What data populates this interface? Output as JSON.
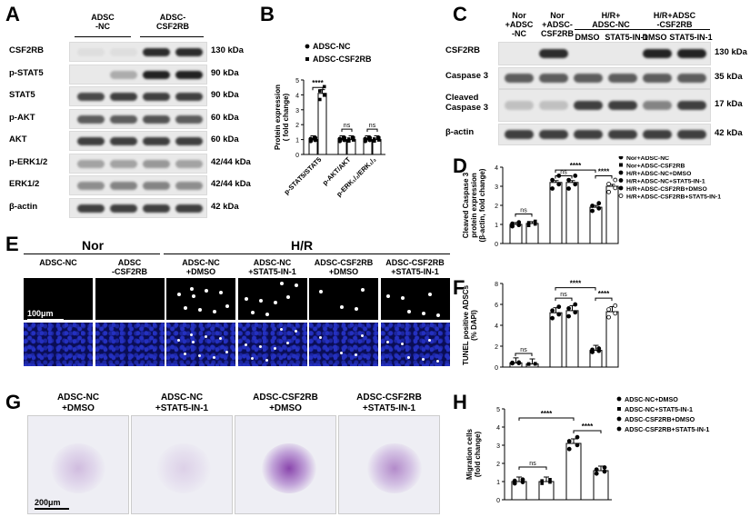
{
  "panels": {
    "A": {
      "letter": "A",
      "group_headers": [
        "ADSC\n-NC",
        "ADSC-\nCSF2RB"
      ],
      "rows": [
        {
          "label": "CSF2RB",
          "kda": "130 kDa"
        },
        {
          "label": "p-STAT5",
          "kda": "90 kDa"
        },
        {
          "label": "STAT5",
          "kda": "90 kDa"
        },
        {
          "label": "p-AKT",
          "kda": "60 kDa"
        },
        {
          "label": "AKT",
          "kda": "60 kDa"
        },
        {
          "label": "p-ERK1/2",
          "kda": "42/44 kDa"
        },
        {
          "label": "ERK1/2",
          "kda": "42/44 kDa"
        },
        {
          "label": "β-actin",
          "kda": "42 kDa"
        }
      ]
    },
    "B": {
      "letter": "B"
    },
    "C": {
      "letter": "C",
      "col_headers": [
        "Nor\n+ADSC\n-NC",
        "Nor\n+ADSC-\nCSF2RB"
      ],
      "group_headers": [
        "H/R+\nADSC-NC",
        "H/R+ADSC\n-CSF2RB"
      ],
      "sub_headers": [
        "DMSO",
        "STAT5-IN-1",
        "DMSO",
        "STAT5-IN-1"
      ],
      "rows": [
        {
          "label": "CSF2RB",
          "kda": "130 kDa"
        },
        {
          "label": "Caspase 3",
          "kda": "35 kDa"
        },
        {
          "label": "Cleaved\nCaspase 3",
          "kda": "17 kDa"
        },
        {
          "label": "β-actin",
          "kda": "42 kDa"
        }
      ]
    },
    "D": {
      "letter": "D"
    },
    "E": {
      "letter": "E",
      "group_headers": [
        "Nor",
        "H/R"
      ],
      "col_headers": [
        "ADSC-NC",
        "ADSC\n-CSF2RB",
        "ADSC-NC\n+DMSO",
        "ADSC-NC\n+STAT5-IN-1",
        "ADSC-CSF2RB\n+DMSO",
        "ADSC-CSF2RB\n+STAT5-IN-1"
      ],
      "scale_bar": "100μm"
    },
    "F": {
      "letter": "F"
    },
    "G": {
      "letter": "G",
      "col_headers": [
        "ADSC-NC\n+DMSO",
        "ADSC-NC\n+STAT5-IN-1",
        "ADSC-CSF2RB\n+DMSO",
        "ADSC-CSF2RB\n+STAT5-IN-1"
      ],
      "scale_bar": "200μm"
    },
    "H": {
      "letter": "H"
    }
  },
  "chart_data": [
    {
      "panel": "B",
      "type": "bar",
      "ylabel": "Protein expression\n( fold change)",
      "ylim": [
        0,
        5
      ],
      "yticks": [
        0,
        1,
        2,
        3,
        4,
        5
      ],
      "categories": [
        "p-STAT5/STAT5",
        "p-AKT/AKT",
        "p-ERK1/2/ERK1/2"
      ],
      "series": [
        {
          "name": "ADSC-NC",
          "values": [
            1.0,
            1.0,
            1.0
          ]
        },
        {
          "name": "ADSC-CSF2RB",
          "values": [
            4.1,
            1.0,
            1.0
          ]
        }
      ],
      "annotations": [
        "****",
        "ns",
        "ns"
      ],
      "legend": "top"
    },
    {
      "panel": "D",
      "type": "bar",
      "ylabel": "Cleaved Caspase 3\nprotein expression\n(β-actin, fold change)",
      "ylim": [
        0,
        4
      ],
      "yticks": [
        0,
        1,
        2,
        3,
        4
      ],
      "series": [
        {
          "name": "Nor+ADSC-NC",
          "values": [
            1.0
          ]
        },
        {
          "name": "Nor+ADSC-CSF2RB",
          "values": [
            1.05
          ]
        },
        {
          "name": "H/R+ADSC-NC+DMSO",
          "values": [
            3.2
          ]
        },
        {
          "name": "H/R+ADSC-NC+STAT5-IN-1",
          "values": [
            3.2
          ]
        },
        {
          "name": "H/R+ADSC-CSF2RB+DMSO",
          "values": [
            1.9
          ]
        },
        {
          "name": "H/R+ADSC-CSF2RB+STAT5-IN-1",
          "values": [
            3.0
          ]
        }
      ],
      "annotations": [
        "ns",
        "****",
        "ns",
        "****"
      ],
      "legend": "right"
    },
    {
      "panel": "F",
      "type": "bar",
      "ylabel": "TUNEL positive ADSCs\n(% DAPI)",
      "ylim": [
        0,
        8
      ],
      "yticks": [
        0,
        2,
        4,
        6,
        8
      ],
      "series": [
        {
          "name": "Nor+ADSC-NC",
          "values": [
            0.4
          ]
        },
        {
          "name": "Nor+ADSC-CSF2RB",
          "values": [
            0.3
          ]
        },
        {
          "name": "H/R+ADSC-NC+DMSO",
          "values": [
            5.2
          ]
        },
        {
          "name": "H/R+ADSC-NC+STAT5-IN-1",
          "values": [
            5.4
          ]
        },
        {
          "name": "H/R+ADSC-CSF2RB+DMSO",
          "values": [
            1.6
          ]
        },
        {
          "name": "H/R+ADSC-CSF2RB+STAT5-IN-1",
          "values": [
            5.3
          ]
        }
      ],
      "annotations": [
        "ns",
        "****",
        "ns",
        "****"
      ]
    },
    {
      "panel": "H",
      "type": "bar",
      "ylabel": "Migration cells\n(fold change)",
      "ylim": [
        0,
        5
      ],
      "yticks": [
        0,
        1,
        2,
        3,
        4,
        5
      ],
      "series": [
        {
          "name": "ADSC-NC+DMSO",
          "values": [
            1.0
          ]
        },
        {
          "name": "ADSC-NC+STAT5-IN-1",
          "values": [
            1.0
          ]
        },
        {
          "name": "ADSC-CSF2RB+DMSO",
          "values": [
            3.1
          ]
        },
        {
          "name": "ADSC-CSF2RB+STAT5-IN-1",
          "values": [
            1.6
          ]
        }
      ],
      "annotations": [
        "****",
        "ns",
        "****"
      ],
      "legend": "right"
    }
  ]
}
